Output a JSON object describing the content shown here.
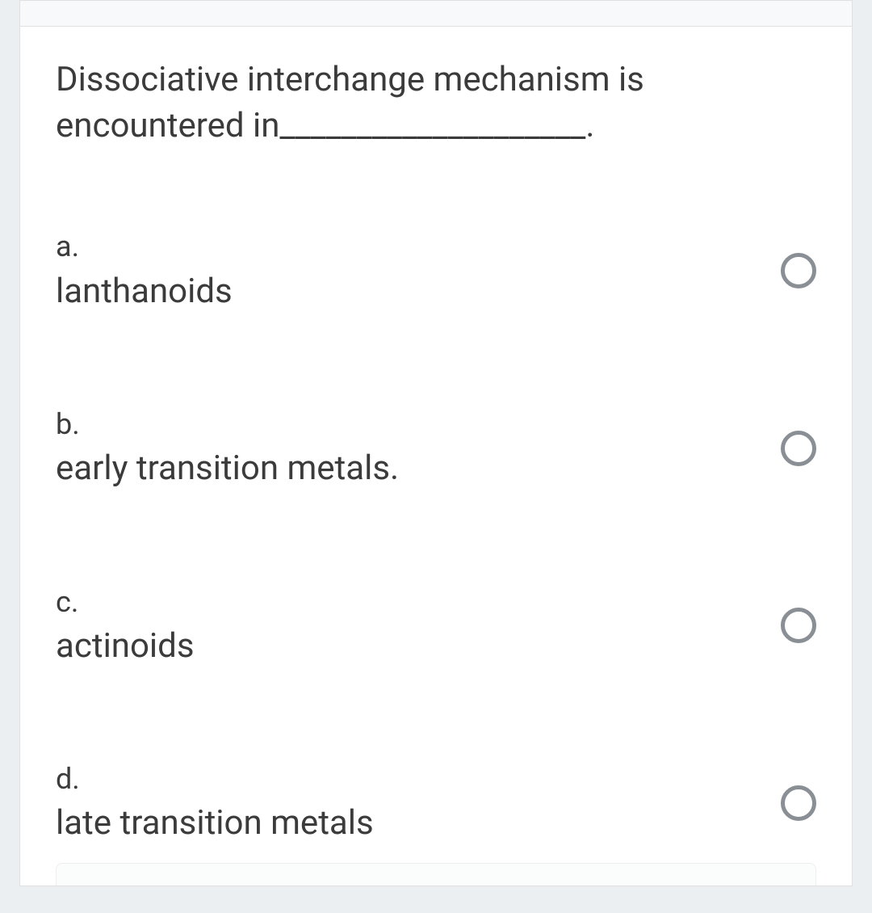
{
  "question": {
    "text": "Dissociative interchange mechanism is encountered in____________________.",
    "text_color": "#3b3b3b",
    "fontsize": 42
  },
  "options": [
    {
      "letter": "a.",
      "label": "lanthanoids",
      "selected": false
    },
    {
      "letter": "b.",
      "label": "early transition metals.",
      "selected": false
    },
    {
      "letter": "c.",
      "label": "actinoids",
      "selected": false
    },
    {
      "letter": "d.",
      "label": "late transition metals",
      "selected": false
    }
  ],
  "styling": {
    "page_background": "#eceff1",
    "card_background": "#ffffff",
    "card_border": "#e0e0e0",
    "header_background": "#f8f9fa",
    "radio_border": "#898f94",
    "radio_size": 44,
    "radio_border_width": 5,
    "letter_fontsize": 36,
    "label_fontsize": 42,
    "bottom_box_background": "#fbfcfc",
    "bottom_box_border": "#eceeef"
  }
}
